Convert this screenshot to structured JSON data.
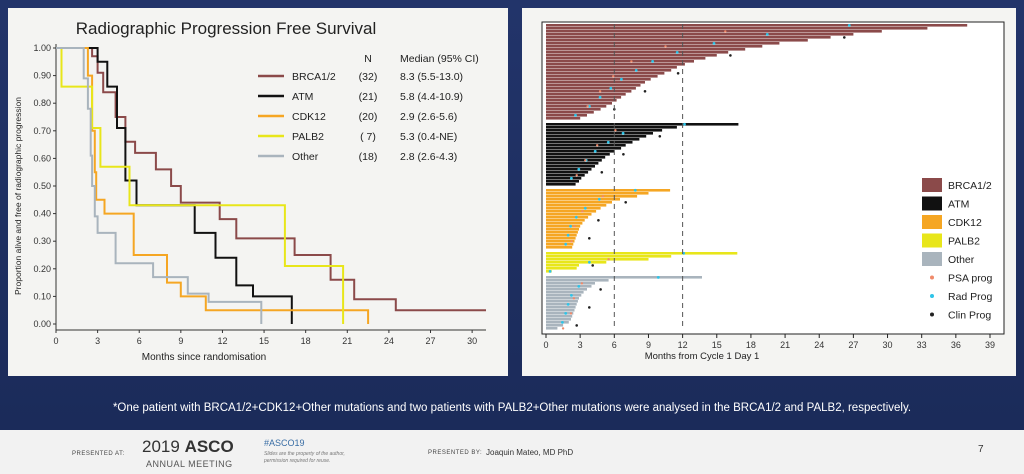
{
  "colors": {
    "BRCA1/2": "#8b4a4a",
    "ATM": "#111111",
    "CDK12": "#f5a623",
    "PALB2": "#e8e61a",
    "Other": "#a9b4bd"
  },
  "chart_data": [
    {
      "type": "line",
      "title": "Radiographic Progression Free Survival",
      "xlabel": "Months since randomisation",
      "ylabel": "Proportion alive and free of radiographic progression",
      "xlim": [
        0,
        31
      ],
      "ylim": [
        0,
        1
      ],
      "xticks": [
        "0",
        "3",
        "6",
        "9",
        "12",
        "15",
        "18",
        "21",
        "24",
        "27",
        "30"
      ],
      "yticks": [
        "0.00",
        "0.10",
        "0.20",
        "0.30",
        "0.40",
        "0.50",
        "0.60",
        "0.70",
        "0.80",
        "0.90",
        "1.00"
      ],
      "legend_header": {
        "n": "N",
        "median": "Median (95% CI)"
      },
      "legend_position": "top-right",
      "series": [
        {
          "name": "BRCA1/2",
          "n": "(32)",
          "median": "8.3 (5.5-13.0)",
          "steps": [
            [
              0,
              1
            ],
            [
              2.6,
              1
            ],
            [
              2.6,
              0.97
            ],
            [
              3.0,
              0.97
            ],
            [
              3.0,
              0.91
            ],
            [
              3.4,
              0.91
            ],
            [
              3.4,
              0.84
            ],
            [
              4.3,
              0.84
            ],
            [
              4.3,
              0.75
            ],
            [
              5.0,
              0.75
            ],
            [
              5.0,
              0.66
            ],
            [
              5.7,
              0.66
            ],
            [
              5.7,
              0.62
            ],
            [
              7.2,
              0.62
            ],
            [
              7.2,
              0.56
            ],
            [
              8.3,
              0.56
            ],
            [
              8.3,
              0.5
            ],
            [
              9.0,
              0.5
            ],
            [
              9.0,
              0.44
            ],
            [
              11.8,
              0.44
            ],
            [
              11.8,
              0.38
            ],
            [
              13.0,
              0.38
            ],
            [
              13.0,
              0.31
            ],
            [
              17.2,
              0.31
            ],
            [
              17.2,
              0.25
            ],
            [
              19.8,
              0.25
            ],
            [
              19.8,
              0.16
            ],
            [
              21.5,
              0.16
            ],
            [
              21.5,
              0.09
            ],
            [
              24.5,
              0.09
            ],
            [
              24.5,
              0.05
            ],
            [
              31.0,
              0.05
            ]
          ]
        },
        {
          "name": "ATM",
          "n": "(21)",
          "median": "5.8 (4.4-10.9)",
          "steps": [
            [
              0,
              1
            ],
            [
              3.0,
              1
            ],
            [
              3.0,
              0.95
            ],
            [
              3.7,
              0.95
            ],
            [
              3.7,
              0.86
            ],
            [
              4.4,
              0.86
            ],
            [
              4.4,
              0.71
            ],
            [
              5.0,
              0.71
            ],
            [
              5.0,
              0.52
            ],
            [
              5.8,
              0.52
            ],
            [
              5.8,
              0.43
            ],
            [
              10.0,
              0.43
            ],
            [
              10.0,
              0.33
            ],
            [
              11.5,
              0.33
            ],
            [
              11.5,
              0.24
            ],
            [
              13.0,
              0.24
            ],
            [
              13.0,
              0.14
            ],
            [
              14.2,
              0.14
            ],
            [
              14.2,
              0.1
            ],
            [
              17.0,
              0.1
            ],
            [
              17.0,
              0.0
            ]
          ]
        },
        {
          "name": "CDK12",
          "n": "(20)",
          "median": "2.9 (2.6-5.6)",
          "steps": [
            [
              0,
              1
            ],
            [
              2.3,
              1
            ],
            [
              2.3,
              0.9
            ],
            [
              2.6,
              0.9
            ],
            [
              2.6,
              0.7
            ],
            [
              2.8,
              0.7
            ],
            [
              2.8,
              0.55
            ],
            [
              2.9,
              0.55
            ],
            [
              2.9,
              0.45
            ],
            [
              3.5,
              0.45
            ],
            [
              3.5,
              0.4
            ],
            [
              5.6,
              0.4
            ],
            [
              5.6,
              0.25
            ],
            [
              8.0,
              0.25
            ],
            [
              8.0,
              0.15
            ],
            [
              9.0,
              0.15
            ],
            [
              9.0,
              0.1
            ],
            [
              10.8,
              0.1
            ],
            [
              10.8,
              0.05
            ],
            [
              22.5,
              0.05
            ],
            [
              22.5,
              0.0
            ]
          ]
        },
        {
          "name": "PALB2",
          "n": "( 7)",
          "median": "5.3 (0.4-NE)",
          "steps": [
            [
              0,
              1
            ],
            [
              0.4,
              1
            ],
            [
              0.4,
              0.86
            ],
            [
              2.6,
              0.86
            ],
            [
              2.6,
              0.71
            ],
            [
              3.2,
              0.71
            ],
            [
              3.2,
              0.57
            ],
            [
              5.3,
              0.57
            ],
            [
              5.3,
              0.43
            ],
            [
              16.5,
              0.43
            ],
            [
              16.5,
              0.21
            ],
            [
              20.7,
              0.21
            ],
            [
              20.7,
              0.0
            ]
          ]
        },
        {
          "name": "Other",
          "n": "(18)",
          "median": "2.8 (2.6-4.3)",
          "steps": [
            [
              0,
              1
            ],
            [
              2.0,
              1
            ],
            [
              2.0,
              0.89
            ],
            [
              2.3,
              0.89
            ],
            [
              2.3,
              0.78
            ],
            [
              2.5,
              0.78
            ],
            [
              2.5,
              0.61
            ],
            [
              2.6,
              0.61
            ],
            [
              2.6,
              0.5
            ],
            [
              2.8,
              0.5
            ],
            [
              2.8,
              0.39
            ],
            [
              3.0,
              0.39
            ],
            [
              3.0,
              0.33
            ],
            [
              4.3,
              0.33
            ],
            [
              4.3,
              0.22
            ],
            [
              7.0,
              0.22
            ],
            [
              7.0,
              0.17
            ],
            [
              9.5,
              0.17
            ],
            [
              9.5,
              0.11
            ],
            [
              11.0,
              0.11
            ],
            [
              11.0,
              0.08
            ],
            [
              14.8,
              0.08
            ],
            [
              14.8,
              0.0
            ]
          ]
        }
      ]
    },
    {
      "type": "bar",
      "orientation": "horizontal",
      "xlabel": "Months from Cycle 1 Day 1",
      "xlim": [
        0,
        39
      ],
      "xticks": [
        "0",
        "3",
        "6",
        "9",
        "12",
        "15",
        "18",
        "21",
        "24",
        "27",
        "30",
        "33",
        "36",
        "39"
      ],
      "reference_lines_months": [
        6,
        12
      ],
      "legend_position": "right",
      "legend": [
        {
          "name": "BRCA1/2",
          "kind": "box"
        },
        {
          "name": "ATM",
          "kind": "box"
        },
        {
          "name": "CDK12",
          "kind": "box"
        },
        {
          "name": "PALB2",
          "kind": "box"
        },
        {
          "name": "Other",
          "kind": "box"
        },
        {
          "name": "PSA prog",
          "kind": "dot",
          "color": "#f08a6a"
        },
        {
          "name": "Rad Prog",
          "kind": "dot",
          "color": "#2ec4e8"
        },
        {
          "name": "Clin Prog",
          "kind": "dot",
          "color": "#222222"
        }
      ],
      "groups": [
        {
          "name": "BRCA1/2",
          "durations": [
            37.0,
            33.5,
            29.5,
            27.0,
            25.0,
            23.0,
            20.5,
            19.0,
            17.5,
            16.0,
            15.0,
            14.0,
            13.0,
            12.2,
            11.5,
            11.0,
            10.4,
            9.8,
            9.2,
            8.7,
            8.3,
            7.9,
            7.5,
            7.0,
            6.6,
            6.2,
            5.8,
            5.3,
            4.8,
            4.2,
            3.6,
            3.0
          ]
        },
        {
          "name": "ATM",
          "durations": [
            16.9,
            11.5,
            10.2,
            9.4,
            8.8,
            8.2,
            7.6,
            7.0,
            6.6,
            6.0,
            5.6,
            5.2,
            4.9,
            4.6,
            4.3,
            4.0,
            3.7,
            3.4,
            3.1,
            2.9,
            2.6
          ]
        },
        {
          "name": "CDK12",
          "durations": [
            10.9,
            9.0,
            8.0,
            6.5,
            5.8,
            5.3,
            4.8,
            4.4,
            4.0,
            3.7,
            3.4,
            3.2,
            3.0,
            2.9,
            2.8,
            2.7,
            2.6,
            2.5,
            2.4,
            2.3
          ]
        },
        {
          "name": "PALB2",
          "durations": [
            16.8,
            11.0,
            9.0,
            5.3,
            2.9,
            2.7,
            0.5
          ]
        },
        {
          "name": "Other",
          "durations": [
            13.7,
            5.5,
            4.3,
            4.0,
            3.6,
            3.3,
            3.1,
            2.9,
            2.8,
            2.7,
            2.6,
            2.5,
            2.4,
            2.3,
            2.2,
            2.0,
            1.5,
            1.0
          ]
        }
      ]
    }
  ],
  "footnote": "*One patient with BRCA1/2+CDK12+Other mutations and two patients with PALB2+Other mutations were analysed in the BRCA1/2 and PALB2, respectively.",
  "footer": {
    "presented_at": "PRESENTED AT:",
    "year": "2019",
    "asco": "ASCO",
    "annual_meeting": "ANNUAL MEETING",
    "hashtag": "#ASCO19",
    "disclaimer1": "Slides are the property of the author,",
    "disclaimer2": "permission required for reuse.",
    "presented_by": "PRESENTED BY:",
    "presenter": "Joaquin Mateo, MD PhD",
    "page": "7"
  }
}
